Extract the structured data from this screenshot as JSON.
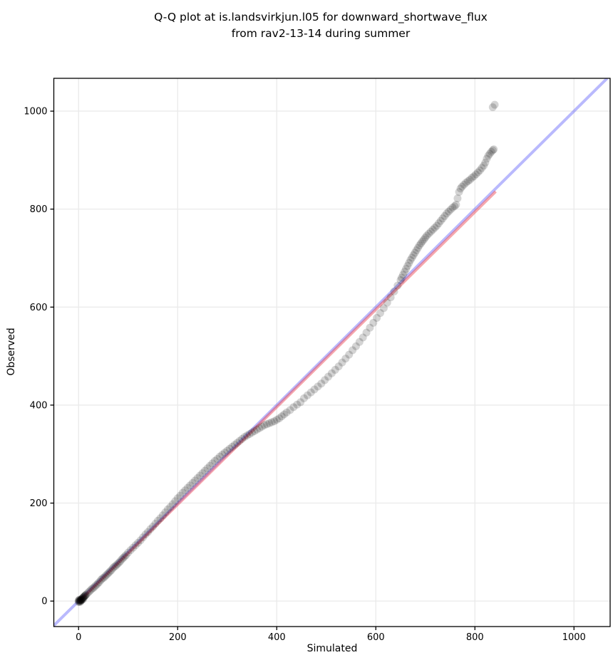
{
  "figure": {
    "title_line1": "Q-Q plot at is.landsvirkjun.l05 for downward_shortwave_flux",
    "title_line2": "from rav2-13-14 during summer"
  },
  "chart_data": {
    "type": "scatter",
    "title": "Q-Q plot at is.landsvirkjun.l05 for downward_shortwave_flux from rav2-13-14 during summer",
    "xlabel": "Simulated",
    "ylabel": "Observed",
    "xlim": [
      -50,
      1073
    ],
    "ylim": [
      -52,
      1067
    ],
    "xticks": [
      0,
      200,
      400,
      600,
      800,
      1000
    ],
    "yticks": [
      0,
      200,
      400,
      600,
      800,
      1000
    ],
    "grid": true,
    "grid_color": "#ebebeb",
    "background_color": "#ffffff",
    "spine_color": "#000000",
    "identity_line": {
      "x1": -50,
      "y1": -50,
      "x2": 1067,
      "y2": 1067,
      "color": "rgba(70,70,250,0.38)",
      "width": 4
    },
    "fit_line": {
      "x1": 0,
      "y1": -2,
      "x2": 842,
      "y2": 836,
      "color": "rgba(235,60,70,0.45)",
      "width": 4
    },
    "marker": {
      "color": "#000000",
      "opacity": 0.17,
      "radius_px": 5.5
    },
    "points": [
      [
        0,
        -2
      ],
      [
        0,
        1
      ],
      [
        1,
        -1
      ],
      [
        1,
        2
      ],
      [
        2,
        0
      ],
      [
        2,
        3
      ],
      [
        3,
        1
      ],
      [
        3,
        -2
      ],
      [
        4,
        2
      ],
      [
        4,
        0
      ],
      [
        5,
        3
      ],
      [
        5,
        1
      ],
      [
        6,
        4
      ],
      [
        6,
        2
      ],
      [
        7,
        5
      ],
      [
        8,
        6
      ],
      [
        8,
        3
      ],
      [
        9,
        7
      ],
      [
        10,
        8
      ],
      [
        10,
        5
      ],
      [
        11,
        9
      ],
      [
        12,
        10
      ],
      [
        13,
        11
      ],
      [
        14,
        12
      ],
      [
        15,
        13
      ],
      [
        18,
        16
      ],
      [
        21,
        19
      ],
      [
        24,
        22
      ],
      [
        27,
        25
      ],
      [
        30,
        27
      ],
      [
        33,
        30
      ],
      [
        36,
        33
      ],
      [
        39,
        36
      ],
      [
        42,
        39
      ],
      [
        45,
        43
      ],
      [
        48,
        46
      ],
      [
        51,
        48
      ],
      [
        54,
        51
      ],
      [
        57,
        54
      ],
      [
        60,
        57
      ],
      [
        63,
        60
      ],
      [
        66,
        63
      ],
      [
        69,
        67
      ],
      [
        72,
        70
      ],
      [
        75,
        72
      ],
      [
        78,
        75
      ],
      [
        81,
        78
      ],
      [
        84,
        81
      ],
      [
        87,
        85
      ],
      [
        90,
        88
      ],
      [
        93,
        91
      ],
      [
        96,
        94
      ],
      [
        100,
        99
      ],
      [
        105,
        104
      ],
      [
        110,
        109
      ],
      [
        115,
        114
      ],
      [
        120,
        119
      ],
      [
        125,
        124
      ],
      [
        130,
        130
      ],
      [
        135,
        136
      ],
      [
        140,
        141
      ],
      [
        145,
        147
      ],
      [
        150,
        152
      ],
      [
        155,
        158
      ],
      [
        160,
        164
      ],
      [
        165,
        169
      ],
      [
        170,
        175
      ],
      [
        175,
        181
      ],
      [
        180,
        187
      ],
      [
        185,
        192
      ],
      [
        190,
        198
      ],
      [
        195,
        204
      ],
      [
        200,
        210
      ],
      [
        205,
        215
      ],
      [
        210,
        221
      ],
      [
        215,
        226
      ],
      [
        220,
        231
      ],
      [
        225,
        236
      ],
      [
        230,
        241
      ],
      [
        235,
        246
      ],
      [
        240,
        251
      ],
      [
        245,
        256
      ],
      [
        250,
        261
      ],
      [
        255,
        266
      ],
      [
        260,
        271
      ],
      [
        265,
        276
      ],
      [
        270,
        281
      ],
      [
        275,
        286
      ],
      [
        280,
        290
      ],
      [
        285,
        295
      ],
      [
        290,
        299
      ],
      [
        295,
        303
      ],
      [
        300,
        307
      ],
      [
        305,
        311
      ],
      [
        310,
        315
      ],
      [
        315,
        319
      ],
      [
        320,
        323
      ],
      [
        325,
        327
      ],
      [
        330,
        331
      ],
      [
        335,
        335
      ],
      [
        340,
        338
      ],
      [
        345,
        341
      ],
      [
        350,
        344
      ],
      [
        355,
        347
      ],
      [
        360,
        350
      ],
      [
        365,
        353
      ],
      [
        370,
        356
      ],
      [
        375,
        359
      ],
      [
        380,
        361
      ],
      [
        385,
        363
      ],
      [
        390,
        365
      ],
      [
        395,
        367
      ],
      [
        400,
        370
      ],
      [
        405,
        373
      ],
      [
        410,
        377
      ],
      [
        415,
        381
      ],
      [
        420,
        385
      ],
      [
        427,
        390
      ],
      [
        434,
        396
      ],
      [
        441,
        401
      ],
      [
        448,
        406
      ],
      [
        455,
        414
      ],
      [
        462,
        420
      ],
      [
        469,
        426
      ],
      [
        476,
        432
      ],
      [
        483,
        438
      ],
      [
        490,
        444
      ],
      [
        497,
        451
      ],
      [
        504,
        458
      ],
      [
        511,
        465
      ],
      [
        518,
        472
      ],
      [
        525,
        479
      ],
      [
        532,
        487
      ],
      [
        539,
        495
      ],
      [
        546,
        503
      ],
      [
        553,
        512
      ],
      [
        560,
        520
      ],
      [
        567,
        529
      ],
      [
        574,
        538
      ],
      [
        581,
        548
      ],
      [
        588,
        558
      ],
      [
        595,
        568
      ],
      [
        602,
        578
      ],
      [
        609,
        588
      ],
      [
        616,
        598
      ],
      [
        623,
        609
      ],
      [
        630,
        620
      ],
      [
        637,
        632
      ],
      [
        644,
        644
      ],
      [
        650,
        655
      ],
      [
        652,
        660
      ],
      [
        655,
        666
      ],
      [
        658,
        672
      ],
      [
        661,
        678
      ],
      [
        664,
        684
      ],
      [
        667,
        690
      ],
      [
        670,
        696
      ],
      [
        673,
        701
      ],
      [
        676,
        706
      ],
      [
        679,
        711
      ],
      [
        682,
        716
      ],
      [
        685,
        721
      ],
      [
        688,
        726
      ],
      [
        691,
        730
      ],
      [
        694,
        734
      ],
      [
        697,
        738
      ],
      [
        700,
        742
      ],
      [
        703,
        746
      ],
      [
        707,
        750
      ],
      [
        711,
        754
      ],
      [
        715,
        758
      ],
      [
        719,
        762
      ],
      [
        723,
        766
      ],
      [
        727,
        771
      ],
      [
        731,
        776
      ],
      [
        735,
        781
      ],
      [
        739,
        786
      ],
      [
        743,
        791
      ],
      [
        747,
        795
      ],
      [
        751,
        799
      ],
      [
        755,
        803
      ],
      [
        759,
        806
      ],
      [
        762,
        809
      ],
      [
        765,
        822
      ],
      [
        768,
        835
      ],
      [
        771,
        842
      ],
      [
        774,
        846
      ],
      [
        778,
        850
      ],
      [
        782,
        854
      ],
      [
        786,
        857
      ],
      [
        790,
        860
      ],
      [
        794,
        864
      ],
      [
        798,
        867
      ],
      [
        802,
        871
      ],
      [
        806,
        875
      ],
      [
        810,
        879
      ],
      [
        814,
        884
      ],
      [
        818,
        889
      ],
      [
        821,
        895
      ],
      [
        824,
        903
      ],
      [
        827,
        909
      ],
      [
        830,
        913
      ],
      [
        833,
        917
      ],
      [
        836,
        920
      ],
      [
        838,
        922
      ],
      [
        836,
        1008
      ],
      [
        840,
        1013
      ]
    ]
  }
}
